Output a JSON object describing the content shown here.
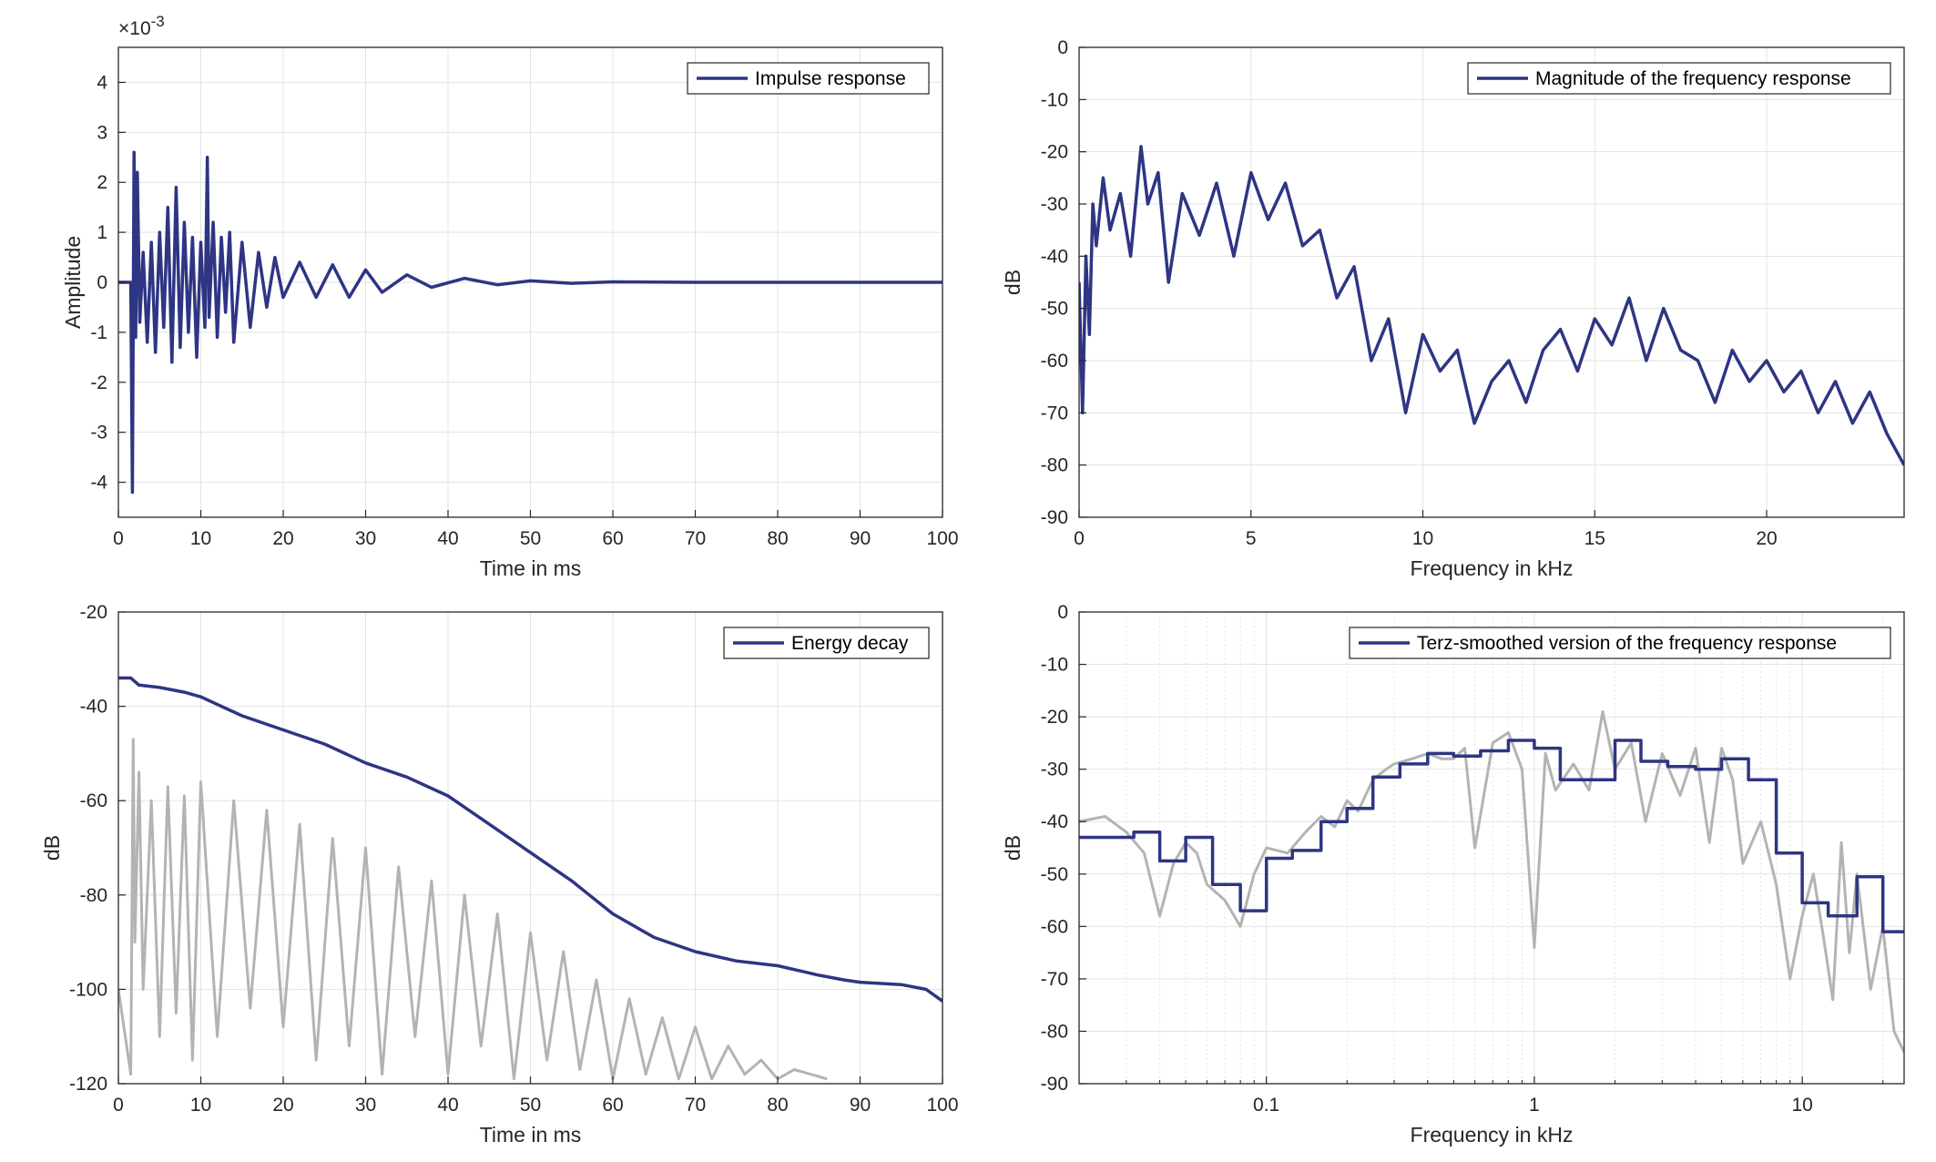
{
  "chart_data": [
    {
      "type": "line",
      "xlabel": "Time in ms",
      "ylabel": "Amplitude",
      "multiplier_label": "×10",
      "multiplier_exp": "-3",
      "xlim": [
        0,
        100
      ],
      "ylim": [
        -4.7,
        4.7
      ],
      "xticks": [
        0,
        10,
        20,
        30,
        40,
        50,
        60,
        70,
        80,
        90,
        100
      ],
      "yticks": [
        -4,
        -3,
        -2,
        -1,
        0,
        1,
        2,
        3,
        4
      ],
      "grid": true,
      "legend": "top-right",
      "series": [
        {
          "name": "Impulse response",
          "color": "#2e3583",
          "x": [
            0,
            1.5,
            1.7,
            1.9,
            2.1,
            2.3,
            2.6,
            3.0,
            3.5,
            4.0,
            4.5,
            5.0,
            5.5,
            6.0,
            6.5,
            7.0,
            7.5,
            8.0,
            8.5,
            9.0,
            9.5,
            10.0,
            10.5,
            10.8,
            11.0,
            11.5,
            12.0,
            12.5,
            13.0,
            13.5,
            14.0,
            15.0,
            16.0,
            17.0,
            18.0,
            19.0,
            20.0,
            22.0,
            24.0,
            26.0,
            28.0,
            30.0,
            32.0,
            35.0,
            38.0,
            42.0,
            46.0,
            50.0,
            55.0,
            60.0,
            70.0,
            80.0,
            90.0,
            100.0
          ],
          "y": [
            0,
            0,
            -4.2,
            2.6,
            -1.1,
            2.2,
            -0.8,
            0.6,
            -1.2,
            0.8,
            -1.4,
            1.0,
            -0.9,
            1.5,
            -1.6,
            1.9,
            -1.3,
            1.2,
            -1.0,
            0.9,
            -1.5,
            0.8,
            -0.9,
            2.5,
            -0.7,
            1.2,
            -1.1,
            0.9,
            -0.6,
            1.0,
            -1.2,
            0.8,
            -0.9,
            0.6,
            -0.5,
            0.5,
            -0.3,
            0.4,
            -0.3,
            0.35,
            -0.3,
            0.25,
            -0.2,
            0.15,
            -0.1,
            0.08,
            -0.05,
            0.03,
            -0.02,
            0.01,
            0,
            0,
            0,
            0
          ]
        }
      ]
    },
    {
      "type": "line",
      "xlabel": "Frequency in kHz",
      "ylabel": "dB",
      "xlim": [
        0,
        24
      ],
      "ylim": [
        -90,
        0
      ],
      "xticks": [
        0,
        5,
        10,
        15,
        20
      ],
      "yticks": [
        0,
        -10,
        -20,
        -30,
        -40,
        -50,
        -60,
        -70,
        -80,
        -90
      ],
      "grid": true,
      "legend": "top-right",
      "series": [
        {
          "name": "Magnitude of the frequency response",
          "color": "#2e3583",
          "x": [
            0,
            0.1,
            0.2,
            0.3,
            0.4,
            0.5,
            0.7,
            0.9,
            1.2,
            1.5,
            1.8,
            2.0,
            2.3,
            2.6,
            3.0,
            3.5,
            4.0,
            4.5,
            5.0,
            5.5,
            6.0,
            6.5,
            7.0,
            7.5,
            8.0,
            8.5,
            9.0,
            9.5,
            10.0,
            10.5,
            11.0,
            11.5,
            12.0,
            12.5,
            13.0,
            13.5,
            14.0,
            14.5,
            15.0,
            15.5,
            16.0,
            16.5,
            17.0,
            17.5,
            18.0,
            18.5,
            19.0,
            19.5,
            20.0,
            20.5,
            21.0,
            21.5,
            22.0,
            22.5,
            23.0,
            23.5,
            24.0
          ],
          "y": [
            -45,
            -70,
            -40,
            -55,
            -30,
            -38,
            -25,
            -35,
            -28,
            -40,
            -19,
            -30,
            -24,
            -45,
            -28,
            -36,
            -26,
            -40,
            -24,
            -33,
            -26,
            -38,
            -35,
            -48,
            -42,
            -60,
            -52,
            -70,
            -55,
            -62,
            -58,
            -72,
            -64,
            -60,
            -68,
            -58,
            -54,
            -62,
            -52,
            -57,
            -48,
            -60,
            -50,
            -58,
            -60,
            -68,
            -58,
            -64,
            -60,
            -66,
            -62,
            -70,
            -64,
            -72,
            -66,
            -74,
            -80
          ]
        }
      ]
    },
    {
      "type": "line",
      "xlabel": "Time in ms",
      "ylabel": "dB",
      "xlim": [
        0,
        100
      ],
      "ylim": [
        -120,
        -20
      ],
      "xticks": [
        0,
        10,
        20,
        30,
        40,
        50,
        60,
        70,
        80,
        90,
        100
      ],
      "yticks": [
        -20,
        -40,
        -60,
        -80,
        -100,
        -120
      ],
      "grid": true,
      "legend": "top-right",
      "series": [
        {
          "name": "Energy decay",
          "color": "#2e3583",
          "x": [
            0,
            1.5,
            2.5,
            5,
            8,
            10,
            15,
            20,
            25,
            30,
            35,
            40,
            45,
            50,
            55,
            60,
            65,
            70,
            75,
            80,
            85,
            88,
            90,
            95,
            98,
            100
          ],
          "y": [
            -34,
            -34,
            -35.5,
            -36,
            -37,
            -38,
            -42,
            -45,
            -48,
            -52,
            -55,
            -59,
            -65,
            -71,
            -77,
            -84,
            -89,
            -92,
            -94,
            -95,
            -97,
            -98,
            -98.5,
            -99,
            -100,
            -102.5
          ]
        },
        {
          "color": "#b3b3b3",
          "x": [
            0,
            1.5,
            1.8,
            2,
            2.5,
            3,
            4,
            5,
            6,
            7,
            8,
            9,
            10,
            12,
            14,
            16,
            18,
            20,
            22,
            24,
            26,
            28,
            30,
            32,
            34,
            36,
            38,
            40,
            42,
            44,
            46,
            48,
            50,
            52,
            54,
            56,
            58,
            60,
            62,
            64,
            66,
            68,
            70,
            72,
            74,
            76,
            78,
            80,
            82,
            84,
            86
          ],
          "y": [
            -100,
            -118,
            -47,
            -90,
            -54,
            -100,
            -60,
            -110,
            -57,
            -105,
            -59,
            -115,
            -56,
            -110,
            -60,
            -104,
            -62,
            -108,
            -65,
            -115,
            -68,
            -112,
            -70,
            -118,
            -74,
            -110,
            -77,
            -118,
            -80,
            -112,
            -84,
            -119,
            -88,
            -115,
            -92,
            -117,
            -98,
            -119,
            -102,
            -118,
            -106,
            -119,
            -108,
            -119,
            -112,
            -118,
            -115,
            -119,
            -117,
            -118,
            -119
          ]
        }
      ]
    },
    {
      "type": "line",
      "xlabel": "Frequency in kHz",
      "ylabel": "dB",
      "xscale": "log",
      "xlim": [
        0.02,
        24
      ],
      "ylim": [
        -90,
        0
      ],
      "xticks": [
        0.1,
        1,
        10
      ],
      "xticklabels": [
        "0.1",
        "1",
        "10"
      ],
      "yticks": [
        0,
        -10,
        -20,
        -30,
        -40,
        -50,
        -60,
        -70,
        -80,
        -90
      ],
      "grid": true,
      "legend": "top-right",
      "series": [
        {
          "name": "Terz-smoothed version of the frequency response",
          "color": "#2e3583",
          "step": true,
          "x": [
            0.02,
            0.025,
            0.032,
            0.04,
            0.05,
            0.063,
            0.08,
            0.1,
            0.125,
            0.16,
            0.2,
            0.25,
            0.315,
            0.4,
            0.5,
            0.63,
            0.8,
            1.0,
            1.25,
            1.6,
            2.0,
            2.5,
            3.15,
            4.0,
            5.0,
            6.3,
            8.0,
            10.0,
            12.5,
            16.0,
            20.0,
            24.0
          ],
          "y": [
            -43,
            -43,
            -42,
            -47.5,
            -43,
            -52,
            -57,
            -47,
            -45.5,
            -40,
            -37.5,
            -31.5,
            -29,
            -27,
            -27.5,
            -26.5,
            -24.5,
            -26,
            -32,
            -32,
            -24.5,
            -28.5,
            -29.5,
            -30,
            -28,
            -32,
            -46,
            -55.5,
            -58,
            -50.5,
            -61,
            -61
          ]
        },
        {
          "color": "#b3b3b3",
          "x": [
            0.02,
            0.025,
            0.03,
            0.035,
            0.04,
            0.045,
            0.05,
            0.055,
            0.06,
            0.07,
            0.08,
            0.09,
            0.1,
            0.12,
            0.14,
            0.16,
            0.18,
            0.2,
            0.22,
            0.25,
            0.28,
            0.3,
            0.35,
            0.4,
            0.45,
            0.5,
            0.55,
            0.6,
            0.7,
            0.8,
            0.9,
            1.0,
            1.1,
            1.2,
            1.4,
            1.6,
            1.8,
            2.0,
            2.3,
            2.6,
            3.0,
            3.5,
            4.0,
            4.5,
            5.0,
            5.5,
            6.0,
            7.0,
            8.0,
            9.0,
            10.0,
            11.0,
            12.0,
            13.0,
            14.0,
            15.0,
            16.0,
            18.0,
            20.0,
            22.0,
            24.0
          ],
          "y": [
            -40,
            -39,
            -42,
            -46,
            -58,
            -48,
            -44,
            -46,
            -52,
            -55,
            -60,
            -50,
            -45,
            -46,
            -42,
            -39,
            -41,
            -36,
            -38,
            -32,
            -30,
            -29,
            -28,
            -27,
            -28,
            -28,
            -26,
            -45,
            -25,
            -23,
            -30,
            -64,
            -27,
            -34,
            -29,
            -34,
            -19,
            -30,
            -25,
            -40,
            -27,
            -35,
            -26,
            -44,
            -26,
            -32,
            -48,
            -40,
            -52,
            -70,
            -58,
            -50,
            -62,
            -74,
            -44,
            -65,
            -50,
            -72,
            -60,
            -80,
            -84
          ]
        }
      ]
    }
  ]
}
